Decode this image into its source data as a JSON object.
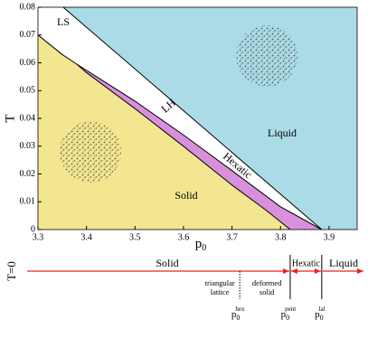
{
  "chart_data": {
    "type": "phase",
    "xlabel": {
      "base": "p",
      "sub": "0"
    },
    "ylabel": "T",
    "xlim": [
      3.3,
      3.958
    ],
    "ylim": [
      0,
      0.08
    ],
    "xticks": [
      3.3,
      3.4,
      3.5,
      3.6,
      3.7,
      3.8,
      3.9
    ],
    "yticks": [
      0,
      0.01,
      0.02,
      0.03,
      0.04,
      0.05,
      0.06,
      0.07,
      0.08
    ],
    "colors": {
      "solid": "#f3e690",
      "hexatic": "#d890dc",
      "liquid": "#aadbe6",
      "line": "#000000",
      "zero_t": "#e8241c"
    },
    "region_labels": {
      "ls": "LS",
      "lh": "LH",
      "hexatic": "Hexatic",
      "liquid": "Liquid",
      "solid": "Solid"
    },
    "solid_line": {
      "x": [
        3.3,
        3.35,
        3.38,
        3.4,
        3.5,
        3.6,
        3.7,
        3.77,
        3.82
      ],
      "values": [
        0.07,
        0.063,
        0.0595,
        0.0565,
        0.0435,
        0.03,
        0.016,
        0.007,
        0
      ]
    },
    "hexatic_line": {
      "x": [
        3.38,
        3.5,
        3.6,
        3.7,
        3.8,
        3.885
      ],
      "values": [
        0.0595,
        0.0462,
        0.034,
        0.0212,
        0.0082,
        0
      ]
    },
    "liquid_line": {
      "x": [
        3.352,
        3.885
      ],
      "values": [
        0.08,
        0
      ]
    },
    "zero_t": {
      "label": "T=0",
      "phases": [
        "Solid",
        "Hexatic",
        "Liquid"
      ],
      "regimes": [
        [
          "triangular",
          "lattice"
        ],
        [
          "deformed",
          "solid"
        ]
      ],
      "transitions": [
        {
          "x": 3.716,
          "label": "hex"
        },
        {
          "x": 3.82,
          "label": "pent"
        },
        {
          "x": 3.885,
          "label": "lal"
        }
      ]
    }
  }
}
